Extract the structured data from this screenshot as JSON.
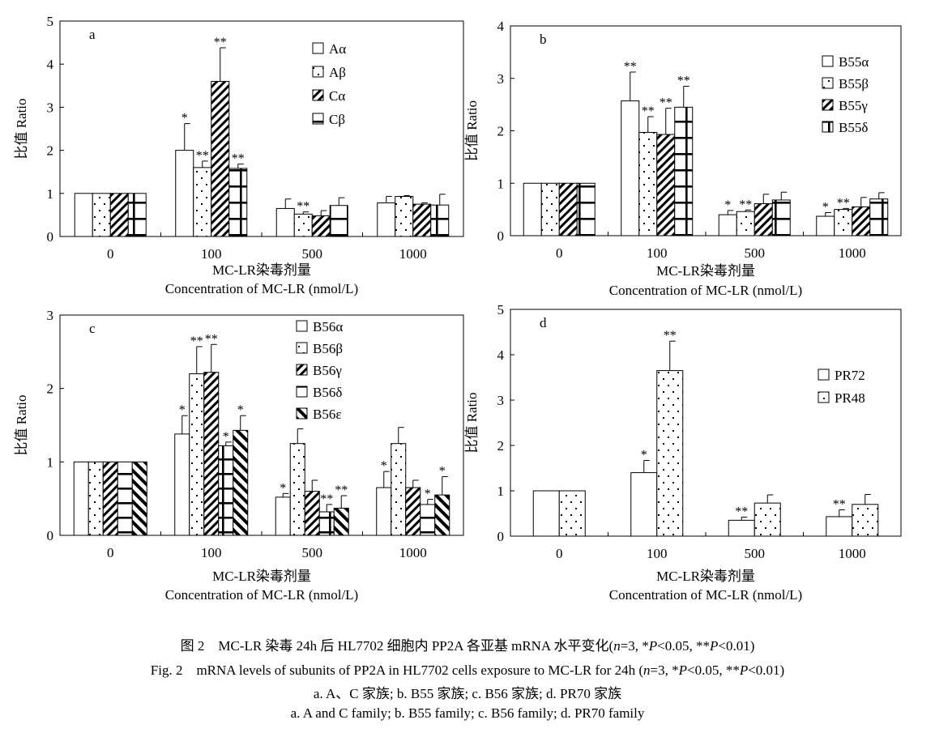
{
  "colors": {
    "ink": "#000000",
    "bar_fill": "#ffffff"
  },
  "caption": {
    "cn": "图 2　MC-LR 染毒 24h 后 HL7702 细胞内 PP2A 各亚基 mRNA 水平变化(",
    "en": "Fig. 2　mRNA levels of subunits of PP2A in HL7702 cells exposure to MC-LR for 24h (",
    "stat_n": "n",
    "stat_n_value": "=3, *",
    "stat_p": "P",
    "stat_p1": "<0.05, **",
    "stat_p2": "<0.01)",
    "sub_cn": "a. A、C 家族; b. B55 家族; c. B56 家族; d. PR70 家族",
    "sub_en": "a. A and C family; b. B55 family; c. B56 family; d. PR70 family"
  },
  "chart_data": [
    {
      "type": "bar",
      "panel_label": "a",
      "ylabel": "比值 Ratio",
      "xlabel": "MC-LR染毒剂量",
      "xlabel2": "Concentration of MC-LR (nmol/L)",
      "ylim": [
        0,
        5
      ],
      "yticks": [
        "0",
        "1",
        "2",
        "3",
        "4",
        "5"
      ],
      "categories": [
        "0",
        "100",
        "500",
        "1000"
      ],
      "legend_position": "top-right",
      "series": [
        {
          "name": "Aα",
          "pattern": "blank",
          "values": [
            1.0,
            2.0,
            0.65,
            0.78
          ],
          "errors": [
            0,
            0.62,
            0.22,
            0.15
          ],
          "marks": [
            "",
            "*",
            "",
            ""
          ]
        },
        {
          "name": "Aβ",
          "pattern": "dots",
          "values": [
            1.0,
            1.6,
            0.52,
            0.93
          ],
          "errors": [
            0,
            0.15,
            0.05,
            0.02
          ],
          "marks": [
            "",
            "**",
            "**",
            ""
          ]
        },
        {
          "name": "Cα",
          "pattern": "diag",
          "values": [
            1.0,
            3.6,
            0.48,
            0.75
          ],
          "errors": [
            0,
            0.78,
            0.12,
            0.03
          ],
          "marks": [
            "",
            "**",
            "",
            ""
          ]
        },
        {
          "name": "Cβ",
          "pattern": "cross",
          "values": [
            1.0,
            1.58,
            0.72,
            0.73
          ],
          "errors": [
            0,
            0.1,
            0.18,
            0.25
          ],
          "marks": [
            "",
            "**",
            "",
            ""
          ]
        }
      ]
    },
    {
      "type": "bar",
      "panel_label": "b",
      "ylabel": "比值 Ratio",
      "xlabel": "MC-LR染毒剂量",
      "xlabel2": "Concentration of MC-LR (nmol/L)",
      "ylim": [
        0,
        4
      ],
      "yticks": [
        "0",
        "1",
        "2",
        "3",
        "4"
      ],
      "categories": [
        "0",
        "100",
        "500",
        "1000"
      ],
      "legend_position": "top-right",
      "series": [
        {
          "name": "B55α",
          "pattern": "blank",
          "values": [
            1.0,
            2.57,
            0.4,
            0.37
          ],
          "errors": [
            0,
            0.55,
            0.08,
            0.07
          ],
          "marks": [
            "",
            "**",
            "*",
            "*"
          ]
        },
        {
          "name": "B55β",
          "pattern": "dots",
          "values": [
            1.0,
            1.97,
            0.46,
            0.5
          ],
          "errors": [
            0,
            0.3,
            0.03,
            0.02
          ],
          "marks": [
            "",
            "**",
            "**",
            "**"
          ]
        },
        {
          "name": "B55γ",
          "pattern": "diag",
          "values": [
            1.0,
            1.93,
            0.61,
            0.55
          ],
          "errors": [
            0,
            0.5,
            0.18,
            0.18
          ],
          "marks": [
            "",
            "**",
            "",
            ""
          ]
        },
        {
          "name": "B55δ",
          "pattern": "cross",
          "values": [
            1.0,
            2.45,
            0.68,
            0.7
          ],
          "errors": [
            0,
            0.4,
            0.15,
            0.12
          ],
          "marks": [
            "",
            "**",
            "",
            ""
          ]
        }
      ]
    },
    {
      "type": "bar",
      "panel_label": "c",
      "ylabel": "比值 Ratio",
      "xlabel": "MC-LR染毒剂量",
      "xlabel2": "Concentration of MC-LR (nmol/L)",
      "ylim": [
        0,
        3
      ],
      "yticks": [
        "0",
        "1",
        "2",
        "3"
      ],
      "categories": [
        "0",
        "100",
        "500",
        "1000"
      ],
      "legend_position": "top-right",
      "series": [
        {
          "name": "B56α",
          "pattern": "blank",
          "values": [
            1.0,
            1.38,
            0.52,
            0.65
          ],
          "errors": [
            0,
            0.25,
            0.05,
            0.22
          ],
          "marks": [
            "",
            "*",
            "*",
            "*"
          ]
        },
        {
          "name": "B56β",
          "pattern": "dots",
          "values": [
            1.0,
            2.2,
            1.25,
            1.25
          ],
          "errors": [
            0,
            0.37,
            0.2,
            0.22
          ],
          "marks": [
            "",
            "**",
            "",
            ""
          ]
        },
        {
          "name": "B56γ",
          "pattern": "diag",
          "values": [
            1.0,
            2.22,
            0.6,
            0.65
          ],
          "errors": [
            0,
            0.38,
            0.15,
            0.1
          ],
          "marks": [
            "",
            "**",
            "",
            ""
          ]
        },
        {
          "name": "B56δ",
          "pattern": "hstripe",
          "values": [
            1.0,
            1.22,
            0.32,
            0.42
          ],
          "errors": [
            0,
            0.05,
            0.1,
            0.07
          ],
          "marks": [
            "",
            "*",
            "**",
            "*"
          ]
        },
        {
          "name": "B56ε",
          "pattern": "checker",
          "values": [
            1.0,
            1.43,
            0.37,
            0.55
          ],
          "errors": [
            0,
            0.2,
            0.17,
            0.25
          ],
          "marks": [
            "",
            "*",
            "**",
            "*"
          ]
        }
      ]
    },
    {
      "type": "bar",
      "panel_label": "d",
      "ylabel": "比值 Ratio",
      "xlabel": "MC-LR染毒剂量",
      "xlabel2": "Concentration of MC-LR (nmol/L)",
      "ylim": [
        0,
        5
      ],
      "yticks": [
        "0",
        "1",
        "2",
        "3",
        "4",
        "5"
      ],
      "categories": [
        "0",
        "100",
        "500",
        "1000"
      ],
      "legend_position": "top-right",
      "series": [
        {
          "name": "PR72",
          "pattern": "blank",
          "values": [
            1.0,
            1.4,
            0.35,
            0.43
          ],
          "errors": [
            0,
            0.27,
            0.07,
            0.15
          ],
          "marks": [
            "",
            "*",
            "**",
            "**"
          ]
        },
        {
          "name": "PR48",
          "pattern": "dots",
          "values": [
            1.0,
            3.65,
            0.73,
            0.7
          ],
          "errors": [
            0,
            0.65,
            0.18,
            0.22
          ],
          "marks": [
            "",
            "**",
            "",
            ""
          ]
        }
      ]
    }
  ]
}
